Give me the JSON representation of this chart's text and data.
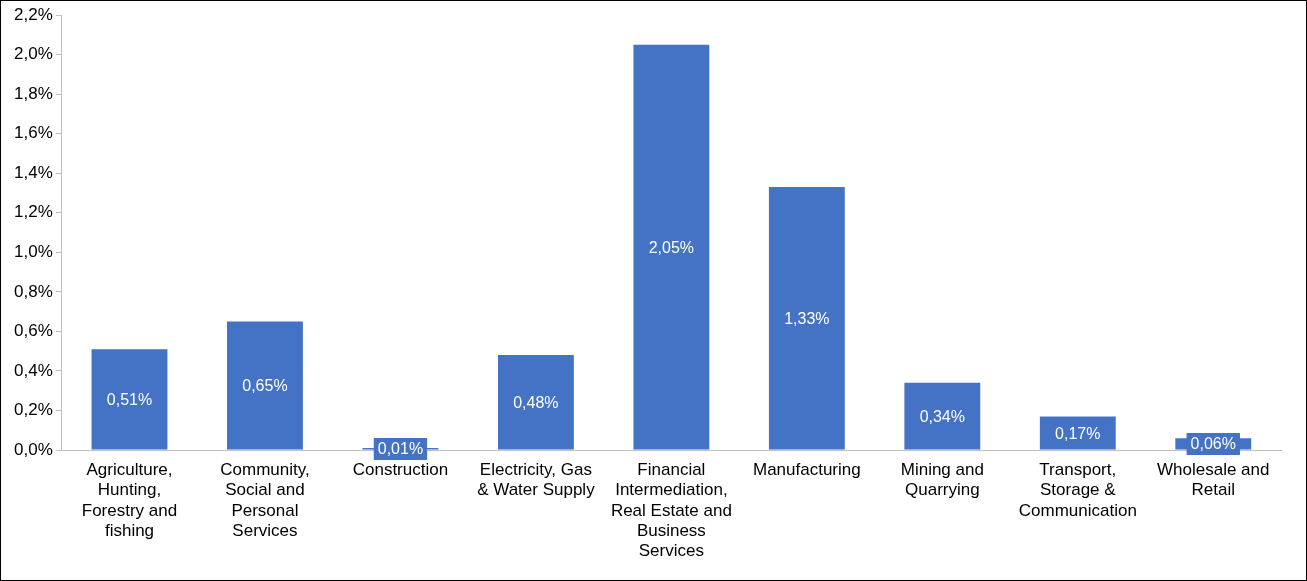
{
  "chart_data": {
    "type": "bar",
    "categories": [
      "Agriculture, Hunting, Forestry and fishing",
      "Community, Social and Personal Services",
      "Construction",
      "Electricity, Gas & Water Supply",
      "Financial Intermediation, Real Estate and Business Services",
      "Manufacturing",
      "Mining and Quarrying",
      "Transport, Storage & Communication",
      "Wholesale and Retail"
    ],
    "values": [
      0.51,
      0.65,
      0.01,
      0.48,
      2.05,
      1.33,
      0.34,
      0.17,
      0.06
    ],
    "value_labels": [
      "0,51%",
      "0,65%",
      "0,01%",
      "0,48%",
      "2,05%",
      "1,33%",
      "0,34%",
      "0,17%",
      "0,06%"
    ],
    "color": "#4472c4",
    "ylim": [
      0,
      2.2
    ],
    "yticks": [
      {
        "value": 0,
        "label": "0,0%"
      },
      {
        "value": 0.2,
        "label": "0,2%"
      },
      {
        "value": 0.4,
        "label": "0,4%"
      },
      {
        "value": 0.6,
        "label": "0,6%"
      },
      {
        "value": 0.8,
        "label": "0,8%"
      },
      {
        "value": 1.0,
        "label": "1,0%"
      },
      {
        "value": 1.2,
        "label": "1,2%"
      },
      {
        "value": 1.4,
        "label": "1,4%"
      },
      {
        "value": 1.6,
        "label": "1,6%"
      },
      {
        "value": 1.8,
        "label": "1,8%"
      },
      {
        "value": 2.0,
        "label": "2,0%"
      },
      {
        "value": 2.2,
        "label": "2,2%"
      }
    ],
    "grid": false,
    "legend": false
  }
}
